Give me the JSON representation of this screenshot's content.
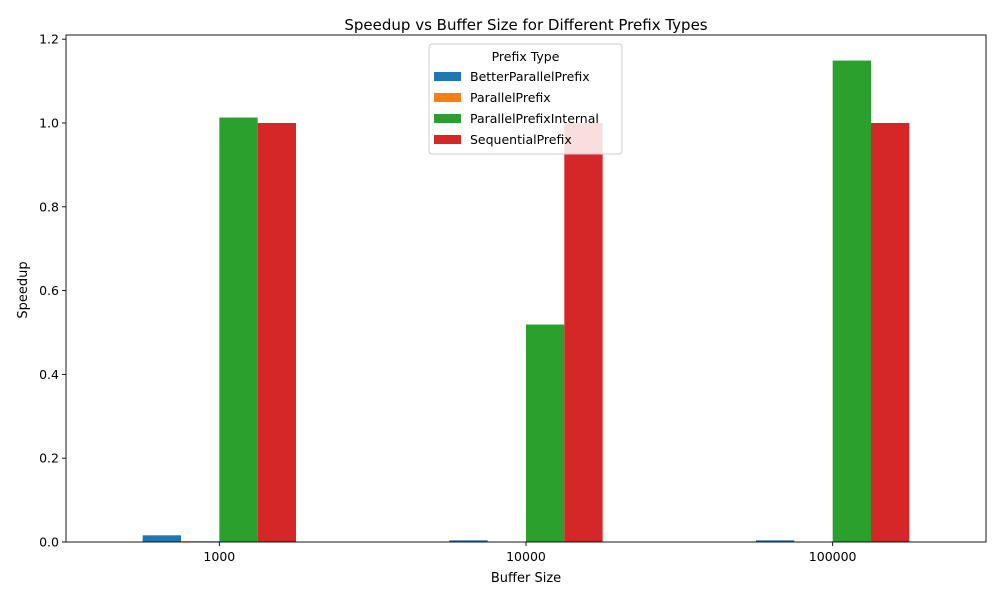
{
  "chart_data": {
    "type": "bar",
    "title": "Speedup vs Buffer Size for Different Prefix Types",
    "xlabel": "Buffer Size",
    "ylabel": "Speedup",
    "categories": [
      "1000",
      "10000",
      "100000"
    ],
    "ylim": [
      0,
      1.21
    ],
    "yticks": [
      "0.0",
      "0.2",
      "0.4",
      "0.6",
      "0.8",
      "1.0",
      "1.2"
    ],
    "ytick_values": [
      0,
      0.2,
      0.4,
      0.6,
      0.8,
      1.0,
      1.2
    ],
    "grid": false,
    "legend": {
      "title": "Prefix Type",
      "placement": "top-center"
    },
    "series": [
      {
        "name": "BetterParallelPrefix",
        "color": "#1f77b4",
        "values": [
          0.016,
          0.004,
          0.004
        ]
      },
      {
        "name": "ParallelPrefix",
        "color": "#ff7f0e",
        "values": [
          0.002,
          0.0,
          0.0
        ]
      },
      {
        "name": "ParallelPrefixInternal",
        "color": "#2ca02c",
        "values": [
          1.013,
          0.519,
          1.149
        ]
      },
      {
        "name": "SequentialPrefix",
        "color": "#d62728",
        "values": [
          1.0,
          1.0,
          1.0
        ]
      }
    ]
  }
}
